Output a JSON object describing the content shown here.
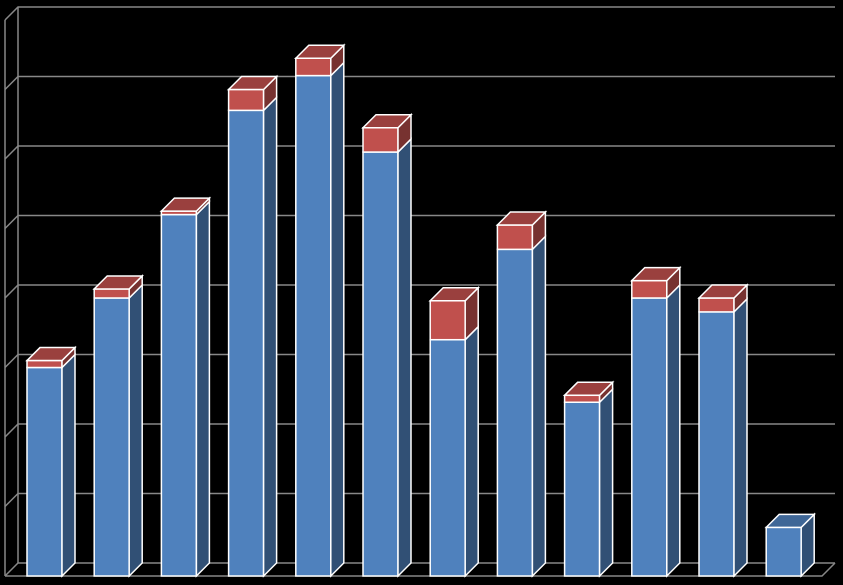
{
  "chart_data": {
    "type": "bar3d_stacked",
    "categories": [
      null,
      null,
      null,
      null,
      null,
      null,
      null,
      null,
      null,
      null,
      null,
      null
    ],
    "series": [
      {
        "color": "#4f81bd",
        "values": [
          3.0,
          4.0,
          5.2,
          6.7,
          7.2,
          6.1,
          3.4,
          4.7,
          2.5,
          4.0,
          3.8,
          0.7
        ]
      },
      {
        "color": "#c0504d",
        "values": [
          0.1,
          0.13,
          0.05,
          0.3,
          0.25,
          0.35,
          0.56,
          0.35,
          0.1,
          0.25,
          0.2,
          0
        ]
      }
    ],
    "ylim": [
      0,
      8
    ],
    "yticks": [
      0,
      1,
      2,
      3,
      4,
      5,
      6,
      7,
      8
    ],
    "grid": true
  }
}
